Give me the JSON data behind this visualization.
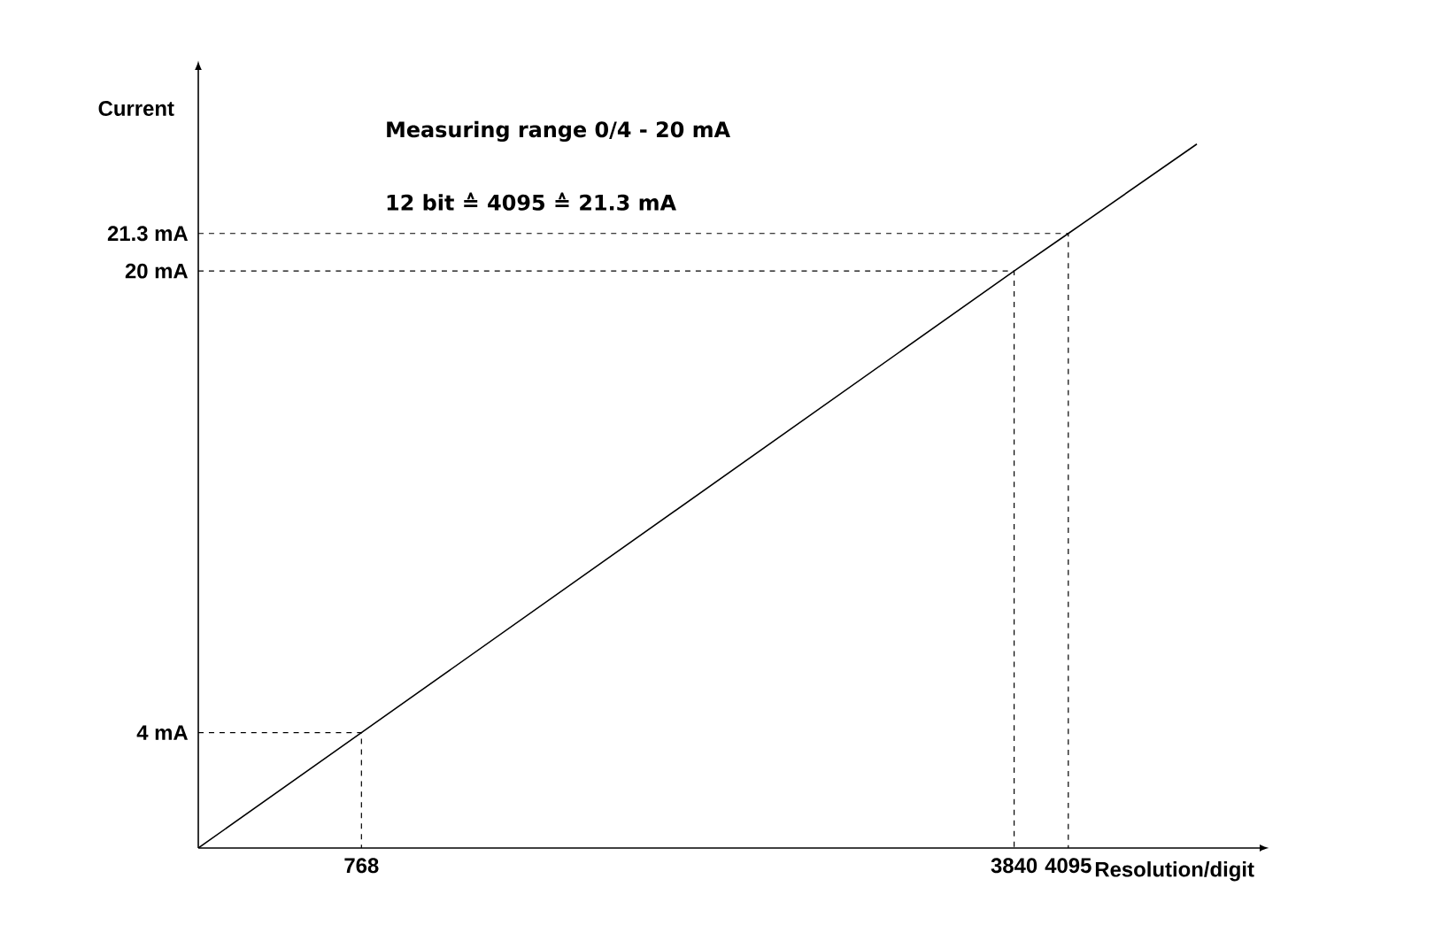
{
  "chart_data": {
    "type": "line",
    "xlabel": "Resolution/digit",
    "ylabel": "Current",
    "annotations": [
      "Measuring range 0/4 - 20 mA",
      "12 bit ≙ 4095 ≙ 21.3 mA"
    ],
    "xlim": [
      0,
      5000
    ],
    "ylim": [
      0,
      27
    ],
    "xticks": [
      768,
      3840,
      4095
    ],
    "yticks": [
      {
        "value": 4,
        "label": "4 mA"
      },
      {
        "value": 20,
        "label": "20 mA"
      },
      {
        "value": 21.3,
        "label": "21.3 mA"
      }
    ],
    "grid": false,
    "marker": "none",
    "series": [
      {
        "color": "#000000",
        "x": [
          0,
          768,
          3840,
          4095,
          4700
        ],
        "values": [
          0,
          4,
          20,
          21.3,
          24.4
        ],
        "line_style": "solid"
      },
      {
        "color": "#000000",
        "x": [
          0,
          768,
          768
        ],
        "values": [
          4,
          4,
          0
        ],
        "line_style": "dashed"
      },
      {
        "color": "#000000",
        "x": [
          0,
          3840,
          3840
        ],
        "values": [
          20,
          20,
          0
        ],
        "line_style": "dashed"
      },
      {
        "color": "#000000",
        "x": [
          0,
          4095,
          4095
        ],
        "values": [
          21.3,
          21.3,
          0
        ],
        "line_style": "dashed"
      }
    ]
  }
}
